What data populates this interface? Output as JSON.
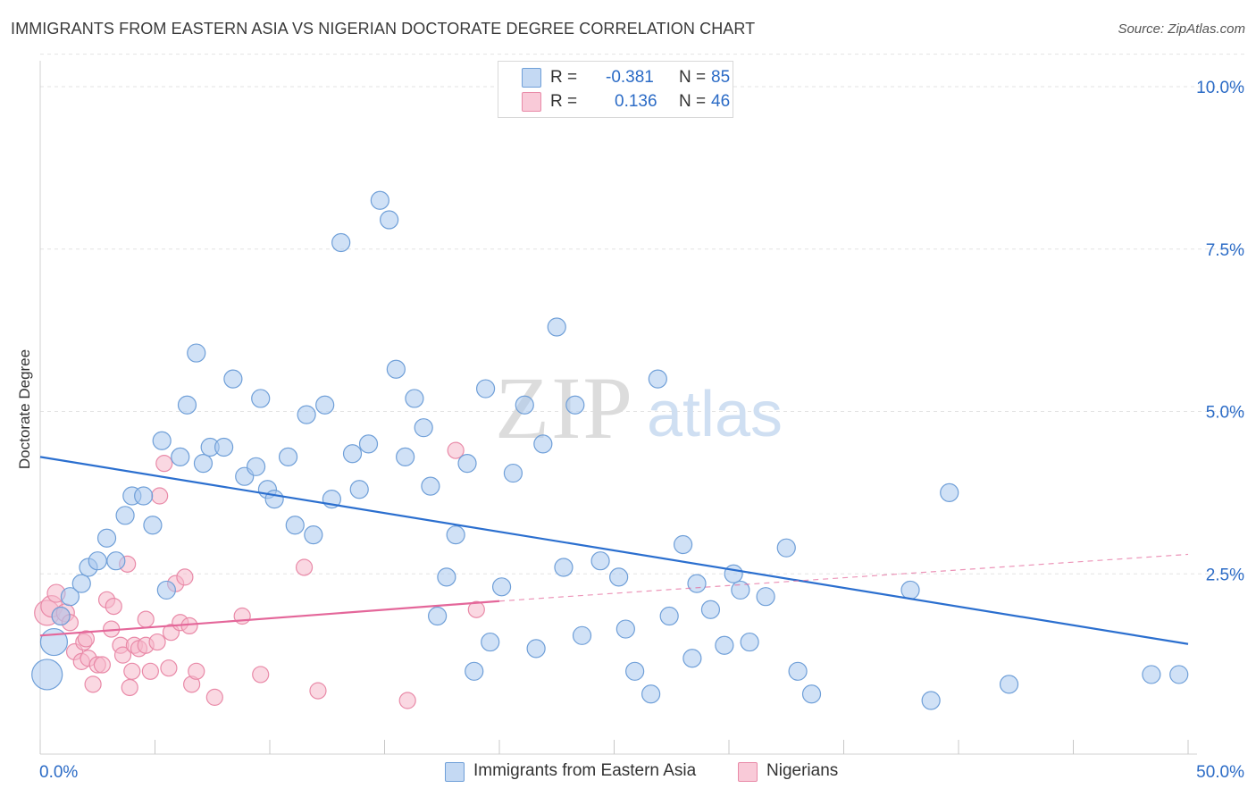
{
  "chart_data": {
    "type": "scatter",
    "title": "IMMIGRANTS FROM EASTERN ASIA VS NIGERIAN DOCTORATE DEGREE CORRELATION CHART",
    "source": "Source: ZipAtlas.com",
    "xlabel": "",
    "ylabel": "Doctorate Degree",
    "x_range": [
      0,
      50
    ],
    "y_range": [
      0,
      10.5
    ],
    "x_tick_labels": [
      "0.0%",
      "50.0%"
    ],
    "y_ticks": [
      2.5,
      5.0,
      7.5,
      10.0
    ],
    "y_tick_labels": [
      "2.5%",
      "5.0%",
      "7.5%",
      "10.0%"
    ],
    "watermark": {
      "zip": "ZIP",
      "atlas": "atlas"
    },
    "legend": {
      "r_label": "R =",
      "n_label": "N =",
      "entries": [
        {
          "name": "Immigrants from Eastern Asia",
          "r": "-0.381",
          "n": "85"
        },
        {
          "name": "Nigerians",
          "r": "0.136",
          "n": "46"
        }
      ]
    },
    "colors": {
      "blue_fill": "#a9c8ef",
      "blue_stroke": "#6f9fd8",
      "blue_line": "#2b6fcf",
      "pink_fill": "#f6b8cb",
      "pink_stroke": "#e98aa8",
      "pink_line": "#e4679a",
      "value_text": "#2b6bc6",
      "grid": "#e3e3e3"
    },
    "series": [
      {
        "name": "Immigrants from Eastern Asia",
        "color": "blue",
        "trend": {
          "x0": 0,
          "y0": 4.3,
          "x1": 50,
          "y1": 1.42
        },
        "points": [
          [
            0.3,
            0.95
          ],
          [
            0.6,
            1.45
          ],
          [
            0.9,
            1.85
          ],
          [
            1.3,
            2.15
          ],
          [
            1.8,
            2.35
          ],
          [
            2.1,
            2.6
          ],
          [
            2.5,
            2.7
          ],
          [
            2.9,
            3.05
          ],
          [
            3.3,
            2.7
          ],
          [
            3.7,
            3.4
          ],
          [
            4.0,
            3.7
          ],
          [
            4.5,
            3.7
          ],
          [
            4.9,
            3.25
          ],
          [
            5.3,
            4.55
          ],
          [
            5.5,
            2.25
          ],
          [
            6.1,
            4.3
          ],
          [
            6.4,
            5.1
          ],
          [
            6.8,
            5.9
          ],
          [
            7.1,
            4.2
          ],
          [
            7.4,
            4.45
          ],
          [
            8.0,
            4.45
          ],
          [
            8.4,
            5.5
          ],
          [
            8.9,
            4.0
          ],
          [
            9.4,
            4.15
          ],
          [
            9.6,
            5.2
          ],
          [
            9.9,
            3.8
          ],
          [
            10.2,
            3.65
          ],
          [
            10.8,
            4.3
          ],
          [
            11.1,
            3.25
          ],
          [
            11.6,
            4.95
          ],
          [
            11.9,
            3.1
          ],
          [
            12.4,
            5.1
          ],
          [
            12.7,
            3.65
          ],
          [
            13.1,
            7.6
          ],
          [
            13.6,
            4.35
          ],
          [
            13.9,
            3.8
          ],
          [
            14.3,
            4.5
          ],
          [
            14.8,
            8.25
          ],
          [
            15.2,
            7.95
          ],
          [
            15.5,
            5.65
          ],
          [
            15.9,
            4.3
          ],
          [
            16.3,
            5.2
          ],
          [
            16.7,
            4.75
          ],
          [
            17.0,
            3.85
          ],
          [
            17.3,
            1.85
          ],
          [
            17.7,
            2.45
          ],
          [
            18.1,
            3.1
          ],
          [
            18.6,
            4.2
          ],
          [
            18.9,
            1.0
          ],
          [
            19.4,
            5.35
          ],
          [
            19.6,
            1.45
          ],
          [
            20.1,
            2.3
          ],
          [
            20.6,
            4.05
          ],
          [
            21.1,
            5.1
          ],
          [
            21.6,
            1.35
          ],
          [
            21.9,
            4.5
          ],
          [
            22.5,
            6.3
          ],
          [
            22.8,
            2.6
          ],
          [
            23.3,
            5.1
          ],
          [
            23.6,
            1.55
          ],
          [
            24.4,
            2.7
          ],
          [
            25.2,
            2.45
          ],
          [
            25.5,
            1.65
          ],
          [
            25.9,
            1.0
          ],
          [
            26.6,
            0.65
          ],
          [
            26.9,
            5.5
          ],
          [
            27.4,
            1.85
          ],
          [
            28.0,
            2.95
          ],
          [
            28.4,
            1.2
          ],
          [
            28.6,
            2.35
          ],
          [
            29.2,
            1.95
          ],
          [
            29.8,
            1.4
          ],
          [
            30.2,
            2.5
          ],
          [
            30.5,
            2.25
          ],
          [
            30.9,
            1.45
          ],
          [
            31.6,
            2.15
          ],
          [
            32.5,
            2.9
          ],
          [
            33.0,
            1.0
          ],
          [
            33.6,
            0.65
          ],
          [
            37.9,
            2.25
          ],
          [
            38.8,
            0.55
          ],
          [
            39.6,
            3.75
          ],
          [
            42.2,
            0.8
          ],
          [
            48.4,
            0.95
          ],
          [
            49.6,
            0.95
          ]
        ],
        "radius": [
          17,
          15,
          10,
          10,
          10,
          10,
          10,
          10,
          10,
          10,
          10,
          10,
          10,
          10,
          10,
          10,
          10,
          10,
          10,
          10,
          10,
          10,
          10,
          10,
          10,
          10,
          10,
          10,
          10,
          10,
          10,
          10,
          10,
          10,
          10,
          10,
          10,
          10,
          10,
          10,
          10,
          10,
          10,
          10,
          10,
          10,
          10,
          10,
          10,
          10,
          10,
          10,
          10,
          10,
          10,
          10,
          10,
          10,
          10,
          10,
          10,
          10,
          10,
          10,
          10,
          10,
          10,
          10,
          10,
          10,
          10,
          10,
          10,
          10,
          10,
          10,
          10,
          10,
          10,
          10,
          10,
          10,
          10,
          10,
          10
        ]
      },
      {
        "name": "Nigerians",
        "color": "pink",
        "trend": {
          "x0": 0,
          "y0": 1.55,
          "x1": 20,
          "y1": 2.08
        },
        "trend_ext": {
          "x0": 20,
          "y0": 2.08,
          "x1": 50,
          "y1": 2.8
        },
        "points": [
          [
            0.3,
            1.9
          ],
          [
            0.5,
            2.0
          ],
          [
            0.7,
            2.2
          ],
          [
            0.9,
            1.85
          ],
          [
            1.1,
            1.9
          ],
          [
            1.3,
            1.75
          ],
          [
            1.5,
            1.3
          ],
          [
            1.8,
            1.15
          ],
          [
            1.9,
            1.45
          ],
          [
            2.1,
            1.2
          ],
          [
            2.3,
            0.8
          ],
          [
            2.5,
            1.1
          ],
          [
            2.7,
            1.1
          ],
          [
            2.9,
            2.1
          ],
          [
            3.1,
            1.65
          ],
          [
            3.2,
            2.0
          ],
          [
            3.5,
            1.4
          ],
          [
            3.6,
            1.25
          ],
          [
            3.8,
            2.65
          ],
          [
            3.9,
            0.75
          ],
          [
            4.1,
            1.4
          ],
          [
            4.3,
            1.35
          ],
          [
            4.6,
            1.4
          ],
          [
            4.6,
            1.8
          ],
          [
            4.8,
            1.0
          ],
          [
            5.1,
            1.45
          ],
          [
            5.2,
            3.7
          ],
          [
            5.4,
            4.2
          ],
          [
            5.6,
            1.05
          ],
          [
            5.7,
            1.6
          ],
          [
            5.9,
            2.35
          ],
          [
            6.1,
            1.75
          ],
          [
            6.3,
            2.45
          ],
          [
            6.5,
            1.7
          ],
          [
            6.6,
            0.8
          ],
          [
            6.8,
            1.0
          ],
          [
            7.6,
            0.6
          ],
          [
            8.8,
            1.85
          ],
          [
            9.6,
            0.95
          ],
          [
            11.5,
            2.6
          ],
          [
            12.1,
            0.7
          ],
          [
            16.0,
            0.55
          ],
          [
            18.1,
            4.4
          ],
          [
            19.0,
            1.95
          ],
          [
            2.0,
            1.5
          ],
          [
            4.0,
            1.0
          ]
        ],
        "radius": [
          14,
          12,
          10,
          10,
          10,
          9,
          9,
          9,
          9,
          9,
          9,
          9,
          9,
          9,
          9,
          9,
          9,
          9,
          9,
          9,
          9,
          9,
          9,
          9,
          9,
          9,
          9,
          9,
          9,
          9,
          9,
          9,
          9,
          9,
          9,
          9,
          9,
          9,
          9,
          9,
          9,
          9,
          9,
          9,
          9,
          9
        ]
      }
    ]
  }
}
